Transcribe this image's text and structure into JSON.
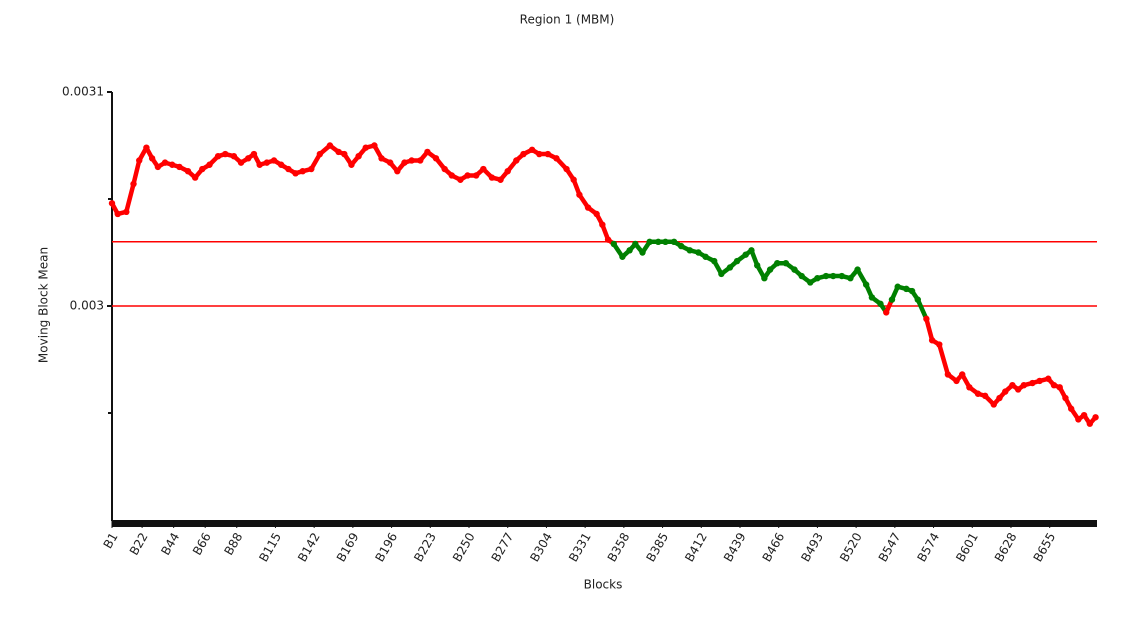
{
  "chart_data": {
    "type": "scatter",
    "title": "Region 1 (MBM)",
    "x_label": "Blocks",
    "y_label": "Moving Block Mean",
    "xlim": [
      1,
      688
    ],
    "xticks": [
      {
        "value": 1,
        "label": "B1"
      },
      {
        "value": 22,
        "label": "B22"
      },
      {
        "value": 44,
        "label": "B44"
      },
      {
        "value": 66,
        "label": "B66"
      },
      {
        "value": 88,
        "label": "B88"
      },
      {
        "value": 115,
        "label": "B115"
      },
      {
        "value": 142,
        "label": "B142"
      },
      {
        "value": 169,
        "label": "B169"
      },
      {
        "value": 196,
        "label": "B196"
      },
      {
        "value": 223,
        "label": "B223"
      },
      {
        "value": 250,
        "label": "B250"
      },
      {
        "value": 277,
        "label": "B277"
      },
      {
        "value": 304,
        "label": "B304"
      },
      {
        "value": 331,
        "label": "B331"
      },
      {
        "value": 358,
        "label": "B358"
      },
      {
        "value": 385,
        "label": "B385"
      },
      {
        "value": 412,
        "label": "B412"
      },
      {
        "value": 439,
        "label": "B439"
      },
      {
        "value": 466,
        "label": "B466"
      },
      {
        "value": 493,
        "label": "B493"
      },
      {
        "value": 520,
        "label": "B520"
      },
      {
        "value": 547,
        "label": "B547"
      },
      {
        "value": 574,
        "label": "B574"
      },
      {
        "value": 601,
        "label": "B601"
      },
      {
        "value": 628,
        "label": "B628"
      },
      {
        "value": 655,
        "label": "B655"
      }
    ],
    "ylim": [
      0.0029,
      0.0031
    ],
    "yticks": [
      0.003,
      0.0031
    ],
    "minor_yticks": [
      0.00295,
      0.00305
    ],
    "control_limits": [
      0.003,
      0.00303
    ],
    "limit_color": "#ff0000",
    "color": "#ff0000",
    "within_color": "#008000",
    "x": [
      1,
      5,
      11,
      16,
      20,
      25,
      29,
      33,
      38,
      43,
      48,
      54,
      59,
      64,
      69,
      75,
      80,
      86,
      91,
      96,
      100,
      104,
      109,
      114,
      119,
      124,
      129,
      134,
      140,
      146,
      153,
      159,
      163,
      168,
      173,
      178,
      184,
      189,
      195,
      200,
      205,
      210,
      216,
      221,
      227,
      233,
      238,
      244,
      249,
      255,
      260,
      266,
      272,
      277,
      283,
      288,
      294,
      299,
      305,
      311,
      318,
      323,
      327,
      333,
      339,
      343,
      347,
      351,
      357,
      362,
      366,
      371,
      376,
      382,
      387,
      393,
      398,
      404,
      410,
      415,
      421,
      426,
      432,
      437,
      443,
      447,
      451,
      456,
      460,
      465,
      471,
      477,
      482,
      488,
      493,
      499,
      504,
      510,
      516,
      521,
      527,
      531,
      537,
      541,
      545,
      549,
      555,
      559,
      563,
      569,
      573,
      578,
      584,
      590,
      594,
      599,
      605,
      610,
      616,
      620,
      624,
      629,
      633,
      637,
      643,
      648,
      654,
      658,
      662,
      666,
      670,
      675,
      679,
      683,
      687
    ],
    "values": [
      0.003048,
      0.003043,
      0.003044,
      0.003057,
      0.003068,
      0.003074,
      0.003069,
      0.003065,
      0.003067,
      0.003066,
      0.003065,
      0.003063,
      0.00306,
      0.003064,
      0.003066,
      0.00307,
      0.003071,
      0.00307,
      0.003067,
      0.003069,
      0.003071,
      0.003066,
      0.003067,
      0.003068,
      0.003066,
      0.003064,
      0.003062,
      0.003063,
      0.003064,
      0.003071,
      0.003075,
      0.003072,
      0.003071,
      0.003066,
      0.00307,
      0.003074,
      0.003075,
      0.003069,
      0.003067,
      0.003063,
      0.003067,
      0.003068,
      0.003068,
      0.003072,
      0.003069,
      0.003064,
      0.003061,
      0.003059,
      0.003061,
      0.003061,
      0.003064,
      0.00306,
      0.003059,
      0.003063,
      0.003068,
      0.003071,
      0.003073,
      0.003071,
      0.003071,
      0.003069,
      0.003064,
      0.003059,
      0.003052,
      0.003046,
      0.003043,
      0.003038,
      0.003031,
      0.003029,
      0.003023,
      0.003026,
      0.003029,
      0.003025,
      0.00303,
      0.00303,
      0.00303,
      0.00303,
      0.003028,
      0.003026,
      0.003025,
      0.003023,
      0.003021,
      0.003015,
      0.003018,
      0.003021,
      0.003024,
      0.003026,
      0.003019,
      0.003013,
      0.003017,
      0.00302,
      0.00302,
      0.003017,
      0.003014,
      0.003011,
      0.003013,
      0.003014,
      0.003014,
      0.003014,
      0.003013,
      0.003017,
      0.00301,
      0.003004,
      0.003001,
      0.002997,
      0.003003,
      0.003009,
      0.003008,
      0.003007,
      0.003003,
      0.002994,
      0.002984,
      0.002982,
      0.002968,
      0.002965,
      0.002968,
      0.002962,
      0.002959,
      0.002958,
      0.002954,
      0.002957,
      0.00296,
      0.002963,
      0.002961,
      0.002963,
      0.002964,
      0.002965,
      0.002966,
      0.002963,
      0.002962,
      0.002957,
      0.002952,
      0.002947,
      0.002949,
      0.002945,
      0.002948
    ]
  }
}
